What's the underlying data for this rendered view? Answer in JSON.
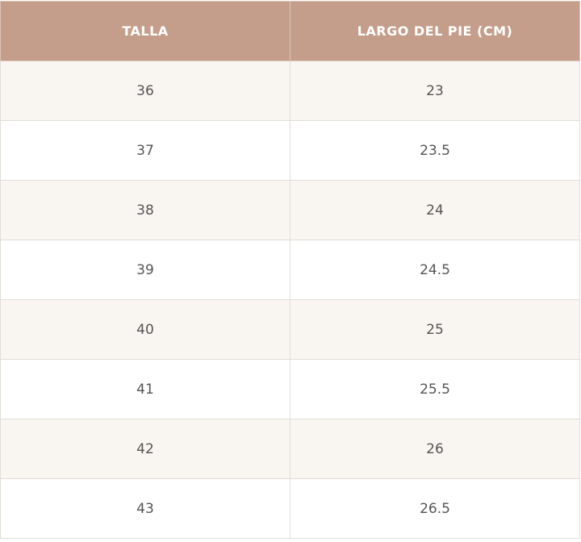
{
  "table": {
    "header": [
      "TALLA",
      "LARGO DEL PIE (CM)"
    ],
    "rows": [
      [
        36,
        23
      ],
      [
        37,
        23.5
      ],
      [
        38,
        24
      ],
      [
        39,
        24.5
      ],
      [
        40,
        25
      ],
      [
        41,
        25.5
      ],
      [
        42,
        26
      ],
      [
        43,
        26.5
      ]
    ]
  }
}
